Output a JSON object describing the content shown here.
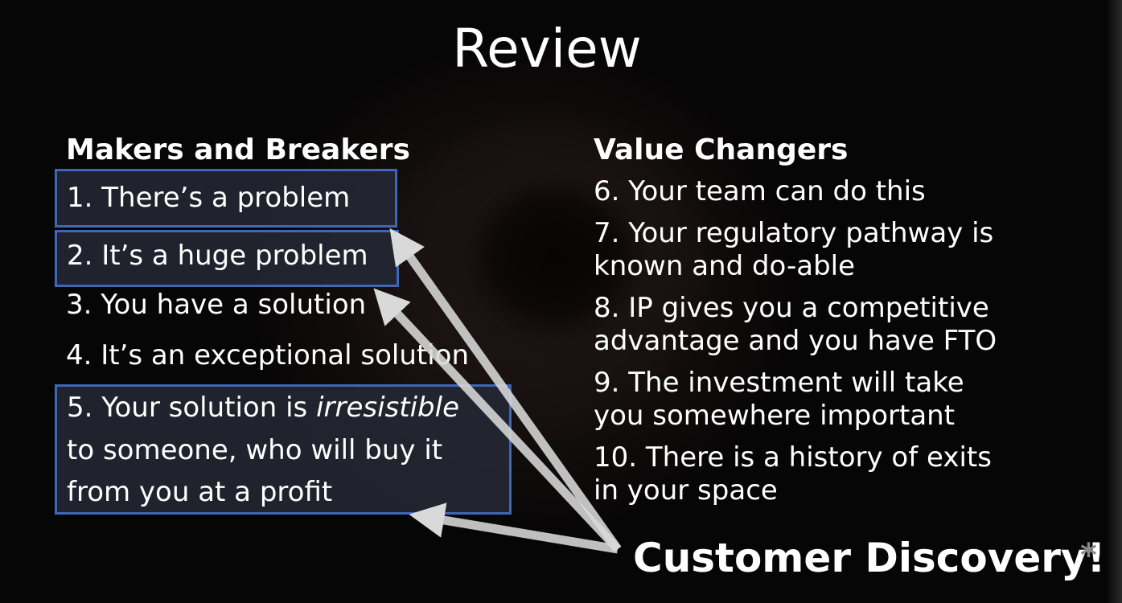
{
  "title": "Review",
  "left": {
    "heading": "Makers and Breakers",
    "item1": "1. There’s a problem",
    "item2": "2. It’s a huge problem",
    "item3": "3. You have a solution",
    "item4": "4. It’s an exceptional solution",
    "item5": {
      "prefix": "5. Your solution is ",
      "emphasis": "irresistible",
      "line2": "to someone, who will buy it",
      "line3": "from you at a profit"
    }
  },
  "right": {
    "heading": "Value Changers",
    "items": [
      {
        "line1": "6. Your team can do this",
        "line2": ""
      },
      {
        "line1": "7. Your regulatory pathway is",
        "line2": "known and do-able"
      },
      {
        "line1": "8. IP gives you a competitive",
        "line2": "advantage and you have FTO"
      },
      {
        "line1": "9. The investment will take",
        "line2": "you somewhere important"
      },
      {
        "line1": "10. There is a history of exits",
        "line2": "in your space"
      }
    ]
  },
  "callout": {
    "text": "Customer Discovery!",
    "asterisk": "*"
  },
  "colors": {
    "box_border": "#3f66b8",
    "box_fill": "#242834",
    "arrow": "#d9d9d9",
    "text": "#ffffff"
  }
}
